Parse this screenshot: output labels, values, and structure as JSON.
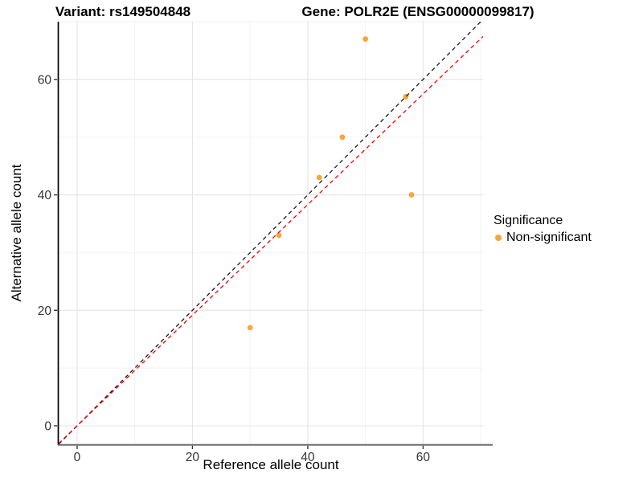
{
  "chart_data": {
    "type": "scatter",
    "title_left": "Variant: rs149504848",
    "title_right": "Gene: POLR2E (ENSG00000099817)",
    "xlabel": "Reference allele count",
    "ylabel": "Alternative allele count",
    "xlim": [
      -3.2,
      70.4
    ],
    "ylim": [
      -3.2,
      70.0
    ],
    "xticks": [
      0,
      20,
      40,
      60
    ],
    "yticks": [
      0,
      20,
      40,
      60
    ],
    "xminor": [
      10,
      30,
      50,
      70
    ],
    "yminor": [
      10,
      30,
      50,
      70
    ],
    "grid": "on",
    "points": [
      {
        "x": 50,
        "y": 67
      },
      {
        "x": 57,
        "y": 57
      },
      {
        "x": 46,
        "y": 50
      },
      {
        "x": 42,
        "y": 43
      },
      {
        "x": 58,
        "y": 40
      },
      {
        "x": 35,
        "y": 33
      },
      {
        "x": 30,
        "y": 17
      }
    ],
    "point_color": "#FAA43A",
    "lines": [
      {
        "name": "identity-line",
        "slope": 1,
        "intercept": 0,
        "color": "#1A1A1A",
        "style": "dashed"
      },
      {
        "name": "fit-line",
        "slope": 0.958,
        "intercept": 0,
        "color": "#F40000",
        "style": "dashed"
      }
    ],
    "legend": {
      "title": "Significance",
      "position": "right",
      "items": [
        {
          "label": "Non-significant",
          "color": "#FAA43A"
        }
      ]
    },
    "style": {
      "grid_major_color": "#E4E4E4",
      "grid_minor_color": "#F2F2F2",
      "axis_line_color": "#333333",
      "tick_label_color": "#333333"
    }
  }
}
